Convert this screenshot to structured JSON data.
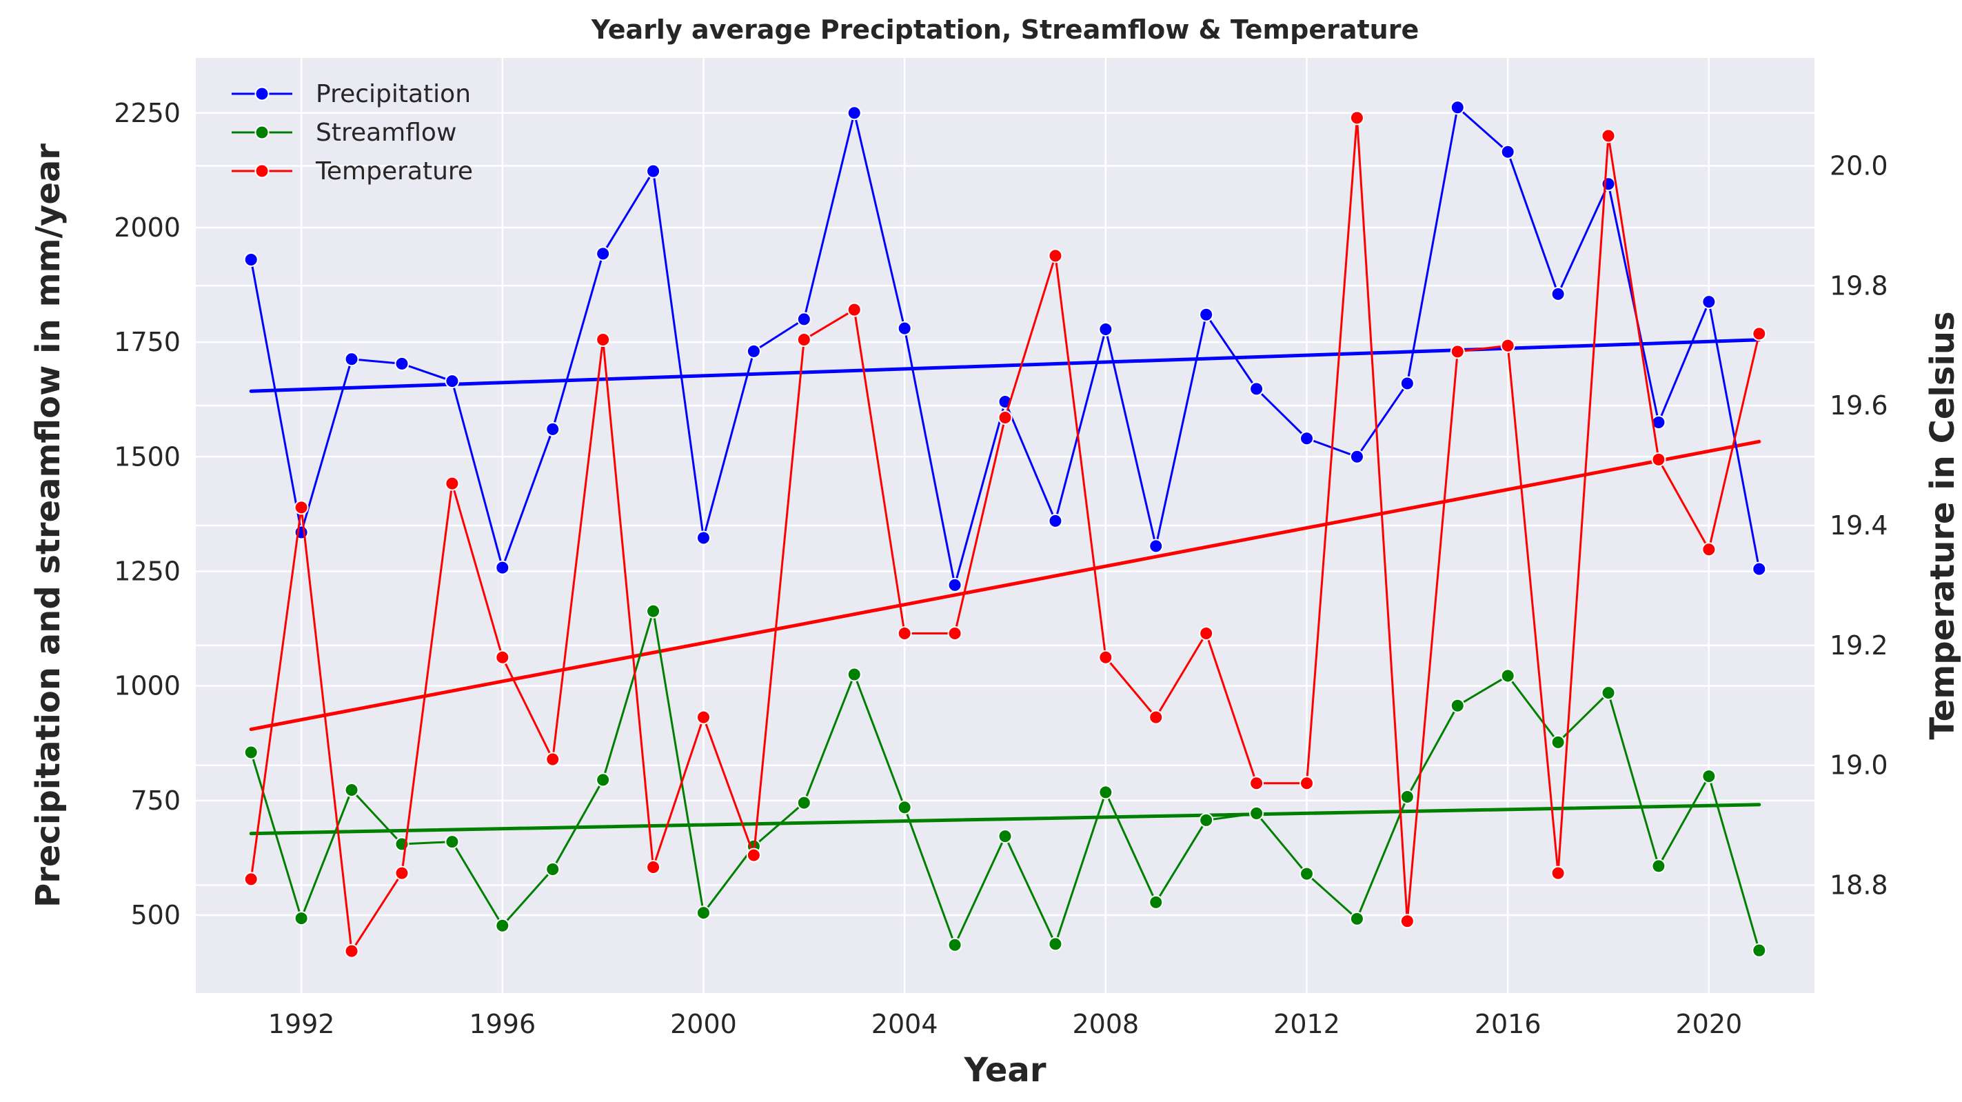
{
  "chart_data": {
    "type": "line",
    "title": "Yearly average Preciptation, Streamflow & Temperature",
    "xlabel": "Year",
    "ylabel": "Precipitation and streamflow in mm/year",
    "ylabel_right": "Temperature in Celsius",
    "xlim": [
      1989.9,
      2022.1
    ],
    "ylim": [
      330,
      2370
    ],
    "ylim_right": [
      18.62,
      20.18
    ],
    "x_ticks": [
      1992,
      1996,
      2000,
      2004,
      2008,
      2012,
      2016,
      2020
    ],
    "y_ticks": [
      500,
      750,
      1000,
      1250,
      1500,
      1750,
      2000,
      2250
    ],
    "y_ticks_right": [
      18.8,
      19.0,
      19.2,
      19.4,
      19.6,
      19.8,
      20.0
    ],
    "grid": true,
    "legend_position": "top-left",
    "x": [
      1991,
      1992,
      1993,
      1994,
      1995,
      1996,
      1997,
      1998,
      1999,
      2000,
      2001,
      2002,
      2003,
      2004,
      2005,
      2006,
      2007,
      2008,
      2009,
      2010,
      2011,
      2012,
      2013,
      2014,
      2015,
      2016,
      2017,
      2018,
      2019,
      2020,
      2021
    ],
    "series": [
      {
        "name": "Precipitation",
        "axis": "left",
        "color": "#0000ff",
        "values": [
          1930,
          1335,
          1713,
          1703,
          1665,
          1258,
          1560,
          1943,
          2123,
          1323,
          1730,
          1800,
          2250,
          1780,
          1220,
          1620,
          1360,
          1778,
          1305,
          1810,
          1648,
          1540,
          1500,
          1660,
          2262,
          2165,
          1855,
          2095,
          1575,
          1838,
          1255
        ],
        "trend": [
          1643,
          1755
        ]
      },
      {
        "name": "Streamflow",
        "axis": "left",
        "color": "#008000",
        "values": [
          855,
          493,
          773,
          655,
          660,
          477,
          600,
          795,
          1163,
          505,
          650,
          745,
          1025,
          735,
          435,
          672,
          437,
          768,
          528,
          707,
          722,
          590,
          492,
          758,
          957,
          1022,
          877,
          985,
          607,
          803,
          423
        ],
        "trend": [
          678,
          741
        ]
      },
      {
        "name": "Temperature",
        "axis": "right",
        "color": "#ff0000",
        "values": [
          18.81,
          19.43,
          18.69,
          18.82,
          19.47,
          19.18,
          19.01,
          19.71,
          18.83,
          19.08,
          18.85,
          19.71,
          19.76,
          19.22,
          19.22,
          19.58,
          19.85,
          19.18,
          19.08,
          19.22,
          18.97,
          18.97,
          20.08,
          18.74,
          19.69,
          19.7,
          18.82,
          20.05,
          19.51,
          19.36,
          19.72
        ],
        "trend": [
          19.06,
          19.54
        ]
      }
    ]
  }
}
